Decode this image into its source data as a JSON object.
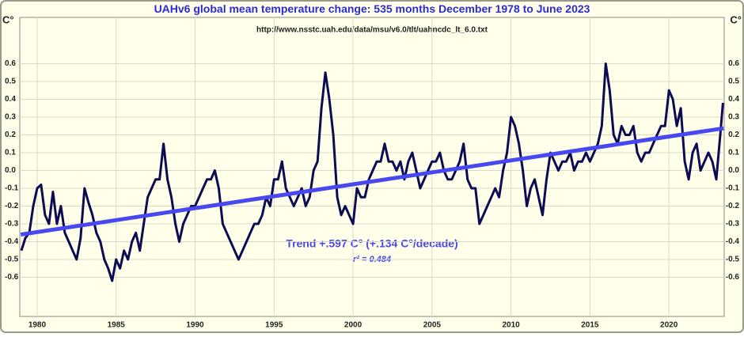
{
  "chart_data": {
    "type": "line",
    "title": {
      "highlight": "UAHv6",
      "text": "global mean temperature change: 535 months December 1978 to June 2023"
    },
    "subtitle": "http://www.nsstc.uah.edu/data/msu/v6.0/tlt/uahncdc_lt_6.0.txt",
    "y_label": "C°",
    "annotation": "Trend +.597 C° (+.134 C°/decade)",
    "r_squared": "r² = 0.484",
    "xlim": [
      1978.9,
      2023.5
    ],
    "xticks": [
      1980,
      1985,
      1990,
      1995,
      2000,
      2005,
      2010,
      2015,
      2020
    ],
    "ylim": [
      -0.82,
      0.86
    ],
    "yticks": [
      -0.6,
      -0.5,
      -0.4,
      -0.3,
      -0.2,
      -0.1,
      {
        "value": 0,
        "label": "0.0"
      },
      0.1,
      0.2,
      0.3,
      0.4,
      0.5,
      0.6
    ],
    "grid": true,
    "x": [
      1979,
      1979.25,
      1979.5,
      1979.75,
      1980,
      1980.25,
      1980.5,
      1980.75,
      1981,
      1981.25,
      1981.5,
      1981.75,
      1982,
      1982.25,
      1982.5,
      1982.75,
      1983,
      1983.25,
      1983.5,
      1983.75,
      1984,
      1984.25,
      1984.5,
      1984.75,
      1985,
      1985.25,
      1985.5,
      1985.75,
      1986,
      1986.25,
      1986.5,
      1986.75,
      1987,
      1987.25,
      1987.5,
      1987.75,
      1988,
      1988.25,
      1988.5,
      1988.75,
      1989,
      1989.25,
      1989.5,
      1989.75,
      1990,
      1990.25,
      1990.5,
      1990.75,
      1991,
      1991.25,
      1991.5,
      1991.75,
      1992,
      1992.25,
      1992.5,
      1992.75,
      1993,
      1993.25,
      1993.5,
      1993.75,
      1994,
      1994.25,
      1994.5,
      1994.75,
      1995,
      1995.25,
      1995.5,
      1995.75,
      1996,
      1996.25,
      1996.5,
      1996.75,
      1997,
      1997.25,
      1997.5,
      1997.75,
      1998,
      1998.25,
      1998.5,
      1998.75,
      1999,
      1999.25,
      1999.5,
      1999.75,
      2000,
      2000.25,
      2000.5,
      2000.75,
      2001,
      2001.25,
      2001.5,
      2001.75,
      2002,
      2002.25,
      2002.5,
      2002.75,
      2003,
      2003.25,
      2003.5,
      2003.75,
      2004,
      2004.25,
      2004.5,
      2004.75,
      2005,
      2005.25,
      2005.5,
      2005.75,
      2006,
      2006.25,
      2006.5,
      2006.75,
      2007,
      2007.25,
      2007.5,
      2007.75,
      2008,
      2008.25,
      2008.5,
      2008.75,
      2009,
      2009.25,
      2009.5,
      2009.75,
      2010,
      2010.25,
      2010.5,
      2010.75,
      2011,
      2011.25,
      2011.5,
      2011.75,
      2012,
      2012.25,
      2012.5,
      2012.75,
      2013,
      2013.25,
      2013.5,
      2013.75,
      2014,
      2014.25,
      2014.5,
      2014.75,
      2015,
      2015.25,
      2015.5,
      2015.75,
      2016,
      2016.25,
      2016.5,
      2016.75,
      2017,
      2017.25,
      2017.5,
      2017.75,
      2018,
      2018.25,
      2018.5,
      2018.75,
      2019,
      2019.25,
      2019.5,
      2019.75,
      2020,
      2020.25,
      2020.5,
      2020.75,
      2021,
      2021.25,
      2021.5,
      2021.75,
      2022,
      2022.25,
      2022.5,
      2022.75,
      2023,
      2023.25,
      2023.42
    ],
    "series": [
      {
        "color": "#0c0c52",
        "values": [
          -0.45,
          -0.38,
          -0.35,
          -0.2,
          -0.1,
          -0.08,
          -0.25,
          -0.3,
          -0.12,
          -0.3,
          -0.2,
          -0.35,
          -0.4,
          -0.45,
          -0.5,
          -0.38,
          -0.1,
          -0.18,
          -0.25,
          -0.35,
          -0.4,
          -0.5,
          -0.55,
          -0.62,
          -0.5,
          -0.55,
          -0.45,
          -0.5,
          -0.4,
          -0.35,
          -0.45,
          -0.3,
          -0.15,
          -0.1,
          -0.05,
          -0.05,
          0.15,
          -0.05,
          -0.15,
          -0.3,
          -0.4,
          -0.3,
          -0.25,
          -0.2,
          -0.2,
          -0.15,
          -0.1,
          -0.05,
          -0.05,
          0,
          -0.1,
          -0.3,
          -0.35,
          -0.4,
          -0.45,
          -0.5,
          -0.45,
          -0.4,
          -0.35,
          -0.3,
          -0.3,
          -0.25,
          -0.15,
          -0.2,
          -0.05,
          -0.05,
          0.05,
          -0.1,
          -0.15,
          -0.2,
          -0.15,
          -0.1,
          -0.2,
          -0.15,
          0,
          0.05,
          0.35,
          0.55,
          0.4,
          0.2,
          -0.15,
          -0.25,
          -0.2,
          -0.25,
          -0.3,
          -0.1,
          -0.15,
          -0.15,
          -0.05,
          0,
          0.05,
          0.05,
          0.15,
          0.05,
          0.05,
          0,
          0.05,
          -0.05,
          0.05,
          0.1,
          0,
          -0.1,
          -0.05,
          0,
          0.05,
          0.05,
          0.1,
          0,
          -0.05,
          -0.05,
          0,
          0.05,
          0.15,
          -0.05,
          -0.1,
          -0.1,
          -0.3,
          -0.25,
          -0.2,
          -0.15,
          -0.1,
          -0.15,
          0,
          0.1,
          0.3,
          0.25,
          0.15,
          0,
          -0.2,
          -0.1,
          -0.05,
          -0.15,
          -0.25,
          -0.05,
          0.1,
          0.05,
          0,
          0.05,
          0.05,
          0.1,
          0,
          0.05,
          0.05,
          0.1,
          0.05,
          0.1,
          0.15,
          0.25,
          0.6,
          0.45,
          0.2,
          0.15,
          0.25,
          0.2,
          0.2,
          0.25,
          0.1,
          0.05,
          0.1,
          0.1,
          0.15,
          0.2,
          0.25,
          0.25,
          0.45,
          0.4,
          0.25,
          0.35,
          0.05,
          -0.05,
          0.1,
          0.15,
          0,
          0.05,
          0.1,
          0.05,
          -0.05,
          0.2,
          0.38
        ]
      }
    ],
    "trend": {
      "x": [
        1978.96,
        2023.46
      ],
      "values": [
        -0.36,
        0.237
      ],
      "color": "#4848f0"
    }
  }
}
